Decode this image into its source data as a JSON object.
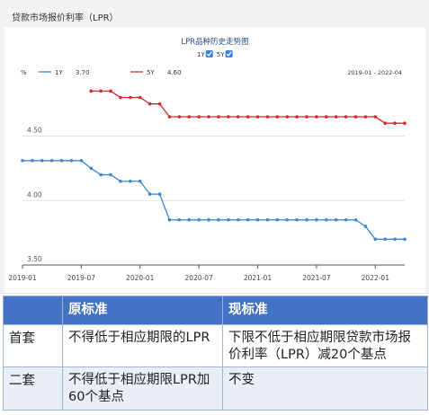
{
  "panel_title": "贷款市场报价利率（LPR）",
  "chart_data": {
    "type": "line",
    "title": "LPR品种历史走势图",
    "toggles": [
      {
        "label": "1Y",
        "checked": true
      },
      {
        "label": "5Y",
        "checked": true
      }
    ],
    "ylabel": "%",
    "date_range": "2019-01 - 2022-04",
    "legend": [
      {
        "series": "1Y",
        "value": "3.70"
      },
      {
        "series": "5Y",
        "value": "4.60"
      }
    ],
    "ylim": [
      3.5,
      4.95
    ],
    "yticks": [
      {
        "value": 3.5,
        "label": "3.50"
      },
      {
        "value": 4.0,
        "label": "4.00"
      },
      {
        "value": 4.5,
        "label": "4.50"
      }
    ],
    "xticks": [
      "2019-01",
      "2019-07",
      "2020-01",
      "2020-07",
      "2021-01",
      "2021-07",
      "2022-01"
    ],
    "x_start": "2019-01",
    "x_end": "2022-04",
    "series": [
      {
        "name": "1Y",
        "color": "#3d87cc",
        "x": [
          "2019-01",
          "2019-02",
          "2019-03",
          "2019-04",
          "2019-05",
          "2019-06",
          "2019-07",
          "2019-08",
          "2019-09",
          "2019-10",
          "2019-11",
          "2019-12",
          "2020-01",
          "2020-02",
          "2020-03",
          "2020-04",
          "2020-05",
          "2020-06",
          "2020-07",
          "2020-08",
          "2020-09",
          "2020-10",
          "2020-11",
          "2020-12",
          "2021-01",
          "2021-02",
          "2021-03",
          "2021-04",
          "2021-05",
          "2021-06",
          "2021-07",
          "2021-08",
          "2021-09",
          "2021-10",
          "2021-11",
          "2021-12",
          "2022-01",
          "2022-02",
          "2022-03",
          "2022-04"
        ],
        "y": [
          4.31,
          4.31,
          4.31,
          4.31,
          4.31,
          4.31,
          4.31,
          4.25,
          4.2,
          4.2,
          4.15,
          4.15,
          4.15,
          4.05,
          4.05,
          3.85,
          3.85,
          3.85,
          3.85,
          3.85,
          3.85,
          3.85,
          3.85,
          3.85,
          3.85,
          3.85,
          3.85,
          3.85,
          3.85,
          3.85,
          3.85,
          3.85,
          3.85,
          3.85,
          3.85,
          3.8,
          3.7,
          3.7,
          3.7,
          3.7
        ]
      },
      {
        "name": "5Y",
        "color": "#d4282a",
        "x": [
          "2019-08",
          "2019-09",
          "2019-10",
          "2019-11",
          "2019-12",
          "2020-01",
          "2020-02",
          "2020-03",
          "2020-04",
          "2020-05",
          "2020-06",
          "2020-07",
          "2020-08",
          "2020-09",
          "2020-10",
          "2020-11",
          "2020-12",
          "2021-01",
          "2021-02",
          "2021-03",
          "2021-04",
          "2021-05",
          "2021-06",
          "2021-07",
          "2021-08",
          "2021-09",
          "2021-10",
          "2021-11",
          "2021-12",
          "2022-01",
          "2022-02",
          "2022-03",
          "2022-04"
        ],
        "y": [
          4.85,
          4.85,
          4.85,
          4.8,
          4.8,
          4.8,
          4.75,
          4.75,
          4.65,
          4.65,
          4.65,
          4.65,
          4.65,
          4.65,
          4.65,
          4.65,
          4.65,
          4.65,
          4.65,
          4.65,
          4.65,
          4.65,
          4.65,
          4.65,
          4.65,
          4.65,
          4.65,
          4.65,
          4.65,
          4.65,
          4.6,
          4.6,
          4.6
        ]
      }
    ],
    "grid": "horizontal",
    "legend_placement": "top-left"
  },
  "table": {
    "headers": [
      "",
      "原标准",
      "现标准"
    ],
    "rows": [
      {
        "label": "首套",
        "original": "不得低于相应期限的LPR",
        "current": "下限不低于相应期限贷款市场报价利率（LPR）减20个基点"
      },
      {
        "label": "二套",
        "original": "不得低于相应期限LPR加60个基点",
        "current": "不变"
      }
    ]
  }
}
